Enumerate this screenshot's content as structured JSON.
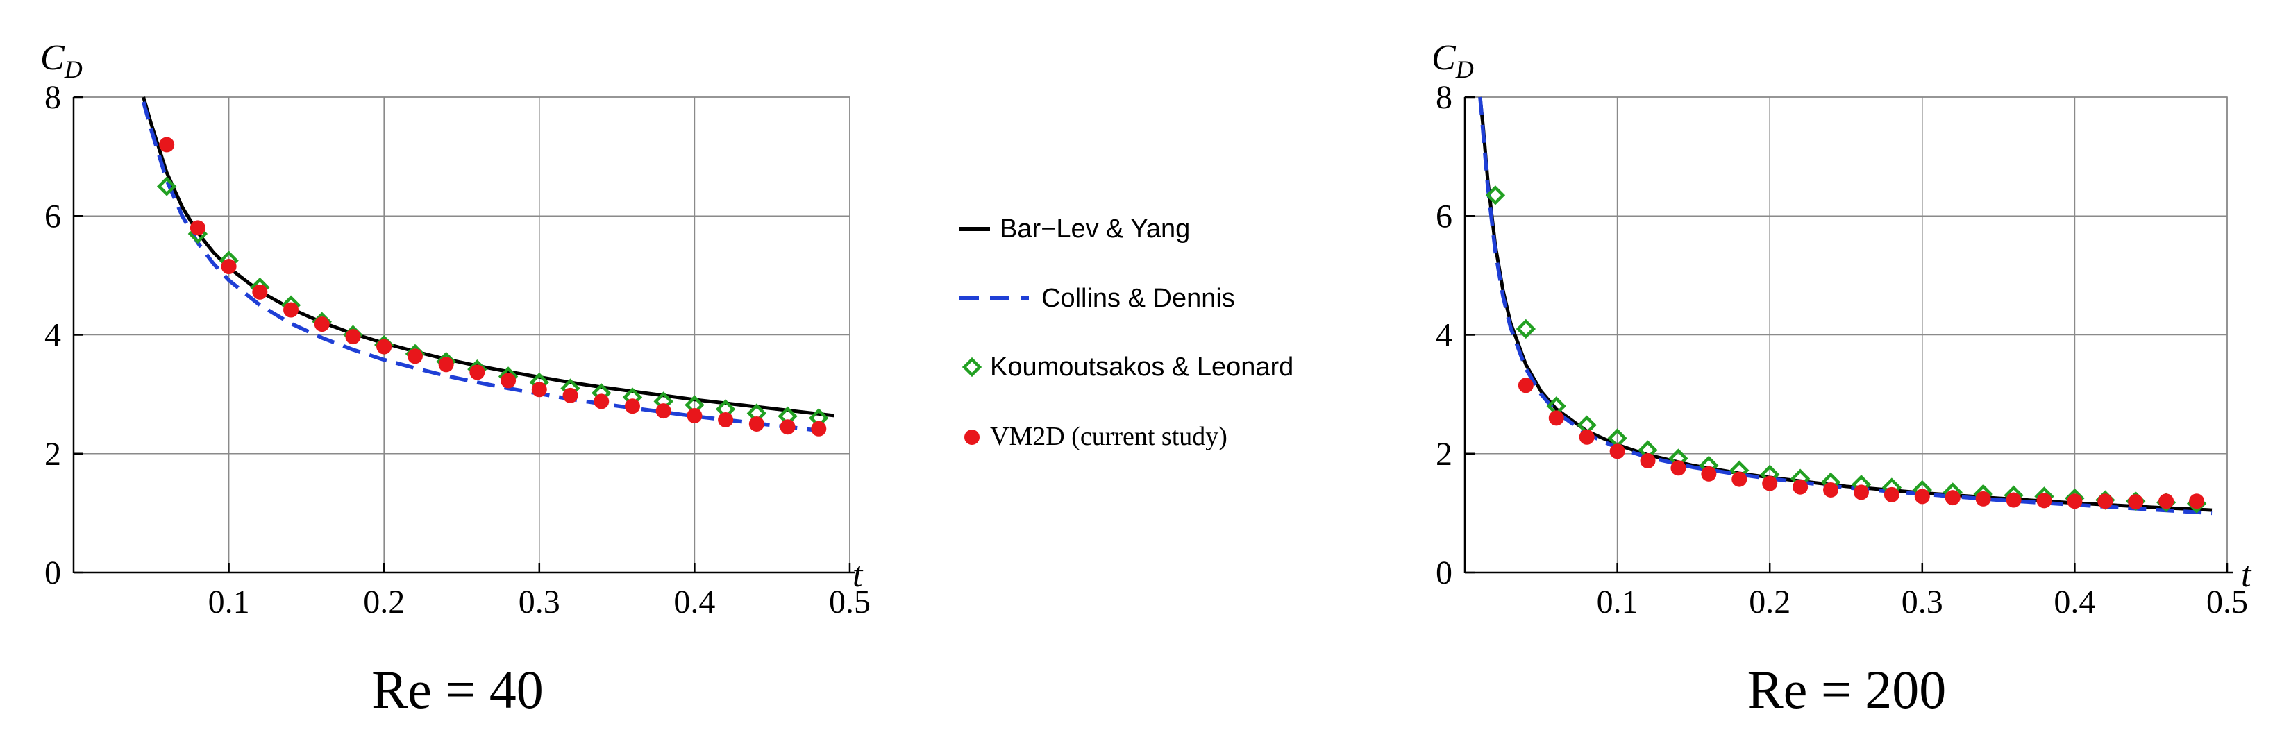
{
  "chart_data": [
    {
      "type": "line",
      "title": "",
      "caption": "Re = 40",
      "xlabel": "t",
      "ylabel": "C_D",
      "ylabel_main": "C",
      "ylabel_sub": "D",
      "xlim": [
        0,
        0.5
      ],
      "ylim": [
        0,
        8
      ],
      "x_ticks": [
        0.1,
        0.2,
        0.3,
        0.4,
        0.5
      ],
      "x_tick_labels": [
        "0.1",
        "0.2",
        "0.3",
        "0.4",
        "0.5"
      ],
      "y_ticks": [
        0,
        2,
        4,
        6,
        8
      ],
      "y_tick_labels": [
        "0",
        "2",
        "4",
        "6",
        "8"
      ],
      "grid": true,
      "series": [
        {
          "name": "Bar-Lev & Yang",
          "style": "solid-line",
          "color": "#000000",
          "x": [
            0.045,
            0.05,
            0.06,
            0.07,
            0.08,
            0.09,
            0.1,
            0.12,
            0.14,
            0.16,
            0.18,
            0.2,
            0.22,
            0.24,
            0.26,
            0.28,
            0.3,
            0.32,
            0.34,
            0.36,
            0.38,
            0.4,
            0.42,
            0.44,
            0.46,
            0.48,
            0.49
          ],
          "y": [
            8.0,
            7.55,
            6.73,
            6.15,
            5.72,
            5.39,
            5.13,
            4.73,
            4.44,
            4.21,
            4.02,
            3.86,
            3.72,
            3.59,
            3.48,
            3.38,
            3.29,
            3.2,
            3.12,
            3.05,
            2.98,
            2.91,
            2.85,
            2.79,
            2.73,
            2.67,
            2.64
          ]
        },
        {
          "name": "Collins & Dennis",
          "style": "dashed-line",
          "color": "#1f3fd6",
          "x": [
            0.045,
            0.05,
            0.06,
            0.07,
            0.08,
            0.09,
            0.1,
            0.12,
            0.14,
            0.16,
            0.18,
            0.2,
            0.22,
            0.24,
            0.26,
            0.28,
            0.3,
            0.32,
            0.34,
            0.36,
            0.38,
            0.4,
            0.42,
            0.44,
            0.46,
            0.48,
            0.49
          ],
          "y": [
            7.92,
            7.45,
            6.6,
            6.0,
            5.55,
            5.2,
            4.92,
            4.5,
            4.19,
            3.95,
            3.75,
            3.58,
            3.44,
            3.31,
            3.2,
            3.1,
            3.01,
            2.92,
            2.84,
            2.77,
            2.7,
            2.63,
            2.57,
            2.51,
            2.45,
            2.39,
            2.37
          ]
        },
        {
          "name": "Koumoutsakos & Leonard",
          "style": "open-diamond",
          "color": "#22a022",
          "x": [
            0.06,
            0.08,
            0.1,
            0.12,
            0.14,
            0.16,
            0.18,
            0.2,
            0.22,
            0.24,
            0.26,
            0.28,
            0.3,
            0.32,
            0.34,
            0.36,
            0.38,
            0.4,
            0.42,
            0.44,
            0.46,
            0.48
          ],
          "y": [
            6.5,
            5.7,
            5.25,
            4.8,
            4.5,
            4.22,
            4.0,
            3.83,
            3.68,
            3.55,
            3.42,
            3.3,
            3.2,
            3.1,
            3.02,
            2.95,
            2.88,
            2.82,
            2.75,
            2.68,
            2.63,
            2.6
          ]
        },
        {
          "name": "VM2D (current study)",
          "style": "filled-circle",
          "color": "#e8161b",
          "x": [
            0.06,
            0.08,
            0.1,
            0.12,
            0.14,
            0.16,
            0.18,
            0.2,
            0.22,
            0.24,
            0.26,
            0.28,
            0.3,
            0.32,
            0.34,
            0.36,
            0.38,
            0.4,
            0.42,
            0.44,
            0.46,
            0.48
          ],
          "y": [
            7.2,
            5.8,
            5.15,
            4.72,
            4.42,
            4.18,
            3.97,
            3.8,
            3.64,
            3.5,
            3.37,
            3.23,
            3.08,
            2.98,
            2.88,
            2.8,
            2.72,
            2.64,
            2.57,
            2.5,
            2.45,
            2.42
          ]
        }
      ]
    },
    {
      "type": "line",
      "title": "",
      "caption": "Re = 200",
      "xlabel": "t",
      "ylabel": "C_D",
      "ylabel_main": "C",
      "ylabel_sub": "D",
      "xlim": [
        0,
        0.5
      ],
      "ylim": [
        0,
        8
      ],
      "x_ticks": [
        0.1,
        0.2,
        0.3,
        0.4,
        0.5
      ],
      "x_tick_labels": [
        "0.1",
        "0.2",
        "0.3",
        "0.4",
        "0.5"
      ],
      "y_ticks": [
        0,
        2,
        4,
        6,
        8
      ],
      "y_tick_labels": [
        "0",
        "2",
        "4",
        "6",
        "8"
      ],
      "grid": true,
      "series": [
        {
          "name": "Bar-Lev & Yang",
          "style": "solid-line",
          "color": "#000000",
          "x": [
            0.01,
            0.012,
            0.015,
            0.02,
            0.025,
            0.03,
            0.04,
            0.05,
            0.06,
            0.08,
            0.1,
            0.12,
            0.15,
            0.18,
            0.2,
            0.25,
            0.3,
            0.35,
            0.4,
            0.45,
            0.49
          ],
          "y": [
            8.0,
            7.5,
            6.6,
            5.5,
            4.75,
            4.2,
            3.5,
            3.05,
            2.75,
            2.38,
            2.15,
            1.98,
            1.8,
            1.67,
            1.6,
            1.45,
            1.34,
            1.25,
            1.17,
            1.1,
            1.05
          ]
        },
        {
          "name": "Collins & Dennis",
          "style": "dashed-line",
          "color": "#1f3fd6",
          "x": [
            0.01,
            0.012,
            0.015,
            0.02,
            0.025,
            0.03,
            0.04,
            0.05,
            0.06,
            0.08,
            0.1,
            0.12,
            0.15,
            0.18,
            0.2,
            0.25,
            0.3,
            0.35,
            0.4,
            0.45,
            0.49
          ],
          "y": [
            8.0,
            7.4,
            6.5,
            5.4,
            4.65,
            4.12,
            3.43,
            3.0,
            2.7,
            2.33,
            2.1,
            1.94,
            1.77,
            1.65,
            1.58,
            1.43,
            1.32,
            1.22,
            1.14,
            1.06,
            1.0
          ]
        },
        {
          "name": "Koumoutsakos & Leonard",
          "style": "open-diamond",
          "color": "#22a022",
          "x": [
            0.02,
            0.04,
            0.06,
            0.08,
            0.1,
            0.12,
            0.14,
            0.16,
            0.18,
            0.2,
            0.22,
            0.24,
            0.26,
            0.28,
            0.3,
            0.32,
            0.34,
            0.36,
            0.38,
            0.4,
            0.42,
            0.44,
            0.46,
            0.48
          ],
          "y": [
            6.35,
            4.1,
            2.8,
            2.48,
            2.26,
            2.06,
            1.92,
            1.8,
            1.72,
            1.65,
            1.58,
            1.52,
            1.48,
            1.43,
            1.39,
            1.35,
            1.32,
            1.3,
            1.28,
            1.25,
            1.22,
            1.2,
            1.18,
            1.16
          ]
        },
        {
          "name": "VM2D (current study)",
          "style": "filled-circle",
          "color": "#e8161b",
          "x": [
            0.04,
            0.06,
            0.08,
            0.1,
            0.12,
            0.14,
            0.16,
            0.18,
            0.2,
            0.22,
            0.24,
            0.26,
            0.28,
            0.3,
            0.32,
            0.34,
            0.36,
            0.38,
            0.4,
            0.42,
            0.44,
            0.46,
            0.48
          ],
          "y": [
            3.15,
            2.6,
            2.28,
            2.04,
            1.88,
            1.76,
            1.66,
            1.57,
            1.5,
            1.44,
            1.39,
            1.35,
            1.31,
            1.28,
            1.26,
            1.24,
            1.22,
            1.21,
            1.2,
            1.2,
            1.19,
            1.2,
            1.2
          ]
        }
      ]
    }
  ],
  "legend": {
    "placement": "center",
    "items": [
      {
        "label": "Bar−Lev & Yang",
        "marker": "solid-line",
        "color": "#000000"
      },
      {
        "label": "Collins & Dennis",
        "marker": "dashed-line",
        "color": "#1f3fd6"
      },
      {
        "label": "Koumoutsakos & Leonard",
        "marker": "open-diamond",
        "color": "#22a022"
      },
      {
        "label": "VM2D (current study)",
        "marker": "filled-circle",
        "color": "#e8161b"
      }
    ]
  }
}
